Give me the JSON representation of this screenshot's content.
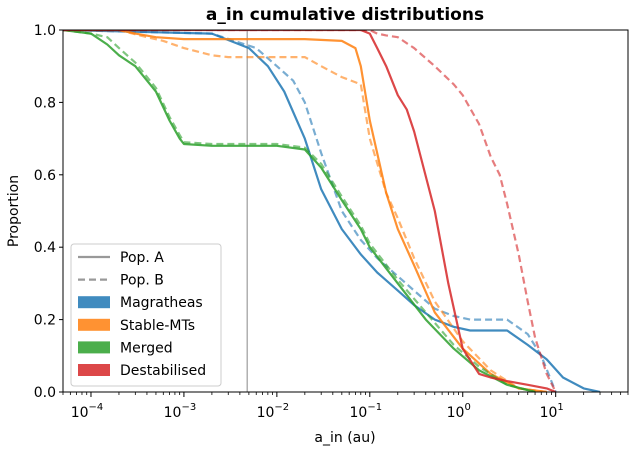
{
  "chart_data": {
    "type": "line",
    "title": "a_in cumulative distributions",
    "xlabel": "a_in  (au)",
    "ylabel": "Proportion",
    "x_scale": "log",
    "xlim": [
      5e-05,
      60
    ],
    "ylim": [
      0,
      1
    ],
    "x_ticks": [
      {
        "value": 0.0001,
        "base": "10",
        "exp": "−4"
      },
      {
        "value": 0.001,
        "base": "10",
        "exp": "−3"
      },
      {
        "value": 0.01,
        "base": "10",
        "exp": "−2"
      },
      {
        "value": 0.1,
        "base": "10",
        "exp": "−1"
      },
      {
        "value": 1,
        "base": "10",
        "exp": "0"
      },
      {
        "value": 10,
        "base": "10",
        "exp": "1"
      }
    ],
    "y_ticks": [
      {
        "value": 0.0,
        "label": "0.0"
      },
      {
        "value": 0.2,
        "label": "0.2"
      },
      {
        "value": 0.4,
        "label": "0.4"
      },
      {
        "value": 0.6,
        "label": "0.6"
      },
      {
        "value": 0.8,
        "label": "0.8"
      },
      {
        "value": 1.0,
        "label": "1.0"
      }
    ],
    "reference_line": {
      "x": 0.0048,
      "color": "#b0b0b0"
    },
    "legend": {
      "placement": "lower-left",
      "entries": [
        {
          "label": "Pop. A",
          "kind": "solid-line",
          "color": "#999999"
        },
        {
          "label": "Pop. B",
          "kind": "dashed-line",
          "color": "#999999"
        },
        {
          "label": "Magratheas",
          "kind": "patch",
          "color": "#1f77b4"
        },
        {
          "label": "Stable-MTs",
          "kind": "patch",
          "color": "#ff7f0e"
        },
        {
          "label": "Merged",
          "kind": "patch",
          "color": "#2ca02c"
        },
        {
          "label": "Destabilised",
          "kind": "patch",
          "color": "#d62728"
        }
      ]
    },
    "series": [
      {
        "group": "Magratheas",
        "population": "Pop. A",
        "color": "#1f77b4",
        "dashed": false,
        "x": [
          5e-05,
          0.002,
          0.005,
          0.008,
          0.012,
          0.02,
          0.03,
          0.05,
          0.08,
          0.12,
          0.2,
          0.3,
          0.5,
          0.8,
          1.2,
          2,
          3,
          5,
          8,
          12,
          20,
          30
        ],
        "y": [
          1.0,
          0.99,
          0.95,
          0.9,
          0.83,
          0.7,
          0.56,
          0.45,
          0.38,
          0.33,
          0.28,
          0.24,
          0.2,
          0.18,
          0.17,
          0.17,
          0.17,
          0.13,
          0.09,
          0.04,
          0.01,
          0.0
        ]
      },
      {
        "group": "Magratheas",
        "population": "Pop. B",
        "color": "#1f77b4",
        "dashed": true,
        "x": [
          5e-05,
          0.002,
          0.006,
          0.01,
          0.015,
          0.02,
          0.03,
          0.05,
          0.08,
          0.12,
          0.2,
          0.3,
          0.5,
          0.8,
          1.2,
          2,
          3,
          5,
          7,
          10
        ],
        "y": [
          1.0,
          0.99,
          0.95,
          0.9,
          0.86,
          0.8,
          0.66,
          0.5,
          0.42,
          0.37,
          0.32,
          0.28,
          0.23,
          0.21,
          0.2,
          0.2,
          0.2,
          0.16,
          0.1,
          0.0
        ]
      },
      {
        "group": "Stable-MTs",
        "population": "Pop. A",
        "color": "#ff7f0e",
        "dashed": false,
        "x": [
          5e-05,
          0.0002,
          0.0003,
          0.0005,
          0.001,
          0.003,
          0.02,
          0.05,
          0.07,
          0.08,
          0.1,
          0.15,
          0.2,
          0.3,
          0.5,
          1,
          2,
          4,
          8
        ],
        "y": [
          1.0,
          1.0,
          0.99,
          0.98,
          0.975,
          0.975,
          0.975,
          0.97,
          0.95,
          0.9,
          0.75,
          0.55,
          0.45,
          0.35,
          0.22,
          0.12,
          0.05,
          0.01,
          0.0
        ]
      },
      {
        "group": "Stable-MTs",
        "population": "Pop. B",
        "color": "#ff7f0e",
        "dashed": true,
        "x": [
          5e-05,
          0.0002,
          0.0004,
          0.0006,
          0.001,
          0.002,
          0.003,
          0.02,
          0.03,
          0.05,
          0.08,
          0.1,
          0.15,
          0.2,
          0.3,
          0.5,
          1,
          2,
          4,
          8
        ],
        "y": [
          1.0,
          1.0,
          0.98,
          0.97,
          0.95,
          0.93,
          0.925,
          0.925,
          0.9,
          0.87,
          0.85,
          0.7,
          0.55,
          0.48,
          0.37,
          0.25,
          0.14,
          0.06,
          0.01,
          0.0
        ]
      },
      {
        "group": "Merged",
        "population": "Pop. A",
        "color": "#2ca02c",
        "dashed": false,
        "x": [
          5e-05,
          0.0001,
          0.00015,
          0.0002,
          0.0003,
          0.0005,
          0.0007,
          0.0009,
          0.001,
          0.002,
          0.01,
          0.02,
          0.03,
          0.05,
          0.08,
          0.1,
          0.2,
          0.4,
          0.8,
          1.5,
          3,
          6
        ],
        "y": [
          1.0,
          0.99,
          0.96,
          0.93,
          0.9,
          0.83,
          0.75,
          0.7,
          0.685,
          0.68,
          0.68,
          0.67,
          0.62,
          0.53,
          0.45,
          0.4,
          0.3,
          0.2,
          0.12,
          0.06,
          0.02,
          0.0
        ]
      },
      {
        "group": "Merged",
        "population": "Pop. B",
        "color": "#2ca02c",
        "dashed": true,
        "x": [
          5e-05,
          0.0001,
          0.00015,
          0.0002,
          0.0003,
          0.0005,
          0.0007,
          0.0009,
          0.001,
          0.002,
          0.01,
          0.02,
          0.03,
          0.05,
          0.08,
          0.1,
          0.2,
          0.4,
          0.8,
          1.5,
          3,
          6
        ],
        "y": [
          1.0,
          0.99,
          0.98,
          0.95,
          0.91,
          0.84,
          0.76,
          0.71,
          0.69,
          0.685,
          0.685,
          0.675,
          0.63,
          0.54,
          0.46,
          0.41,
          0.31,
          0.22,
          0.13,
          0.07,
          0.02,
          0.0
        ]
      },
      {
        "group": "Destabilised",
        "population": "Pop. A",
        "color": "#d62728",
        "dashed": false,
        "x": [
          5e-05,
          0.08,
          0.1,
          0.12,
          0.15,
          0.2,
          0.25,
          0.3,
          0.5,
          0.7,
          1,
          1.5,
          2,
          3,
          5,
          8,
          10
        ],
        "y": [
          1.0,
          1.0,
          0.99,
          0.95,
          0.9,
          0.82,
          0.78,
          0.72,
          0.5,
          0.3,
          0.12,
          0.05,
          0.04,
          0.03,
          0.02,
          0.01,
          0.0
        ]
      },
      {
        "group": "Destabilised",
        "population": "Pop. B",
        "color": "#d62728",
        "dashed": true,
        "x": [
          5e-05,
          0.1,
          0.12,
          0.15,
          0.2,
          0.3,
          0.5,
          0.8,
          1,
          1.5,
          2,
          2.5,
          3,
          4,
          5,
          6,
          8,
          10
        ],
        "y": [
          1.0,
          1.0,
          0.99,
          0.985,
          0.98,
          0.95,
          0.9,
          0.85,
          0.82,
          0.74,
          0.65,
          0.6,
          0.52,
          0.38,
          0.25,
          0.15,
          0.05,
          0.0
        ]
      }
    ]
  }
}
